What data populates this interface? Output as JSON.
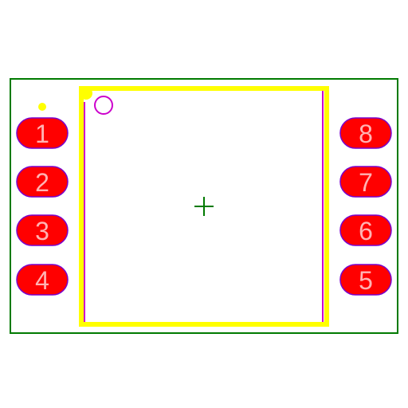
{
  "footprint": {
    "colors": {
      "courtyard": "#007a00",
      "silkscreen": "#ffff00",
      "fab": "#cc00cc",
      "pad_fill": "#ff0000",
      "pad_stroke": "#7a00cc",
      "pad_text": "#ffb3b3",
      "origin": "#007a00",
      "pin1_marker": "#ffff00"
    },
    "pads_left": [
      {
        "label": "1"
      },
      {
        "label": "2"
      },
      {
        "label": "3"
      },
      {
        "label": "4"
      }
    ],
    "pads_right": [
      {
        "label": "8"
      },
      {
        "label": "7"
      },
      {
        "label": "6"
      },
      {
        "label": "5"
      }
    ]
  }
}
